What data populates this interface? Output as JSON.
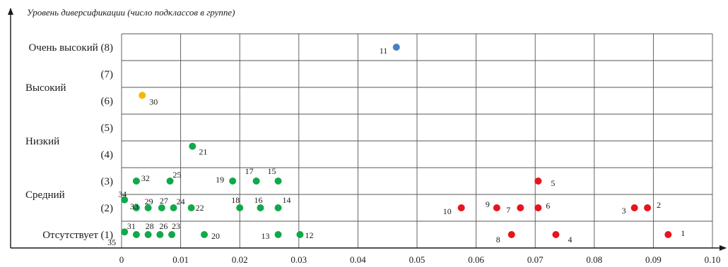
{
  "chart_data": {
    "type": "scatter",
    "title": "Уровень диверсификации (число подклассов в группе)",
    "xlabel": "",
    "ylabel": "Уровень диверсификации (число подклассов в группе)",
    "xlim": [
      0,
      0.1
    ],
    "ylim": [
      0.5,
      8.5
    ],
    "x_ticks": [
      "0",
      "0.01",
      "0.02",
      "0.03",
      "0.04",
      "0.05",
      "0.06",
      "0.07",
      "0.08",
      "0.09",
      "0.10"
    ],
    "y_levels": [
      {
        "label": "Очень высокий (8)",
        "value": 8
      },
      {
        "label": "(7)",
        "value": 7
      },
      {
        "label": "(6)",
        "value": 6
      },
      {
        "label": "(5)",
        "value": 5
      },
      {
        "label": "(4)",
        "value": 4
      },
      {
        "label": "(3)",
        "value": 3
      },
      {
        "label": "(2)",
        "value": 2
      },
      {
        "label": "Отсутствует (1)",
        "value": 1
      }
    ],
    "y_categories": [
      {
        "label": "Высокий",
        "value": 6.5
      },
      {
        "label": "Низкий",
        "value": 4.5
      },
      {
        "label": "Средний",
        "value": 2.5
      }
    ],
    "grid": true,
    "colors": {
      "red": "#e8141e",
      "green": "#12a84a",
      "blue": "#4a7fc6",
      "yellow": "#f5b700"
    },
    "points": [
      {
        "id": "1",
        "x": 0.0925,
        "y": 1,
        "color": "red"
      },
      {
        "id": "2",
        "x": 0.089,
        "y": 2,
        "color": "red"
      },
      {
        "id": "3",
        "x": 0.0868,
        "y": 2,
        "color": "red"
      },
      {
        "id": "4",
        "x": 0.0735,
        "y": 1,
        "color": "red"
      },
      {
        "id": "5",
        "x": 0.0705,
        "y": 3,
        "color": "red"
      },
      {
        "id": "6",
        "x": 0.0705,
        "y": 2,
        "color": "red"
      },
      {
        "id": "7",
        "x": 0.0675,
        "y": 2,
        "color": "red"
      },
      {
        "id": "8",
        "x": 0.066,
        "y": 1,
        "color": "red"
      },
      {
        "id": "9",
        "x": 0.0635,
        "y": 2,
        "color": "red"
      },
      {
        "id": "10",
        "x": 0.0575,
        "y": 2,
        "color": "red"
      },
      {
        "id": "11",
        "x": 0.0465,
        "y": 8,
        "color": "blue"
      },
      {
        "id": "12",
        "x": 0.0302,
        "y": 1,
        "color": "green"
      },
      {
        "id": "13",
        "x": 0.0265,
        "y": 1,
        "color": "green"
      },
      {
        "id": "14",
        "x": 0.0265,
        "y": 2,
        "color": "green"
      },
      {
        "id": "15",
        "x": 0.0265,
        "y": 3,
        "color": "green"
      },
      {
        "id": "16",
        "x": 0.0235,
        "y": 2,
        "color": "green"
      },
      {
        "id": "17",
        "x": 0.0228,
        "y": 3,
        "color": "green"
      },
      {
        "id": "18",
        "x": 0.02,
        "y": 2,
        "color": "green"
      },
      {
        "id": "19",
        "x": 0.0188,
        "y": 3,
        "color": "green"
      },
      {
        "id": "20",
        "x": 0.014,
        "y": 1,
        "color": "green"
      },
      {
        "id": "21",
        "x": 0.012,
        "y": 4.3,
        "color": "green"
      },
      {
        "id": "22",
        "x": 0.0118,
        "y": 2,
        "color": "green"
      },
      {
        "id": "23",
        "x": 0.0085,
        "y": 1,
        "color": "green"
      },
      {
        "id": "24",
        "x": 0.0088,
        "y": 2,
        "color": "green"
      },
      {
        "id": "25",
        "x": 0.0082,
        "y": 3,
        "color": "green"
      },
      {
        "id": "26",
        "x": 0.0065,
        "y": 1,
        "color": "green"
      },
      {
        "id": "27",
        "x": 0.0068,
        "y": 2,
        "color": "green"
      },
      {
        "id": "28",
        "x": 0.0045,
        "y": 1,
        "color": "green"
      },
      {
        "id": "29",
        "x": 0.0045,
        "y": 2,
        "color": "green"
      },
      {
        "id": "30",
        "x": 0.0035,
        "y": 6.2,
        "color": "yellow"
      },
      {
        "id": "31",
        "x": 0.0025,
        "y": 1,
        "color": "green"
      },
      {
        "id": "32",
        "x": 0.0025,
        "y": 3,
        "color": "green"
      },
      {
        "id": "33",
        "x": 0.0025,
        "y": 2,
        "color": "green"
      },
      {
        "id": "34",
        "x": 0.0005,
        "y": 2.3,
        "color": "green"
      },
      {
        "id": "35",
        "x": 0.0005,
        "y": 1.1,
        "color": "green"
      }
    ]
  }
}
